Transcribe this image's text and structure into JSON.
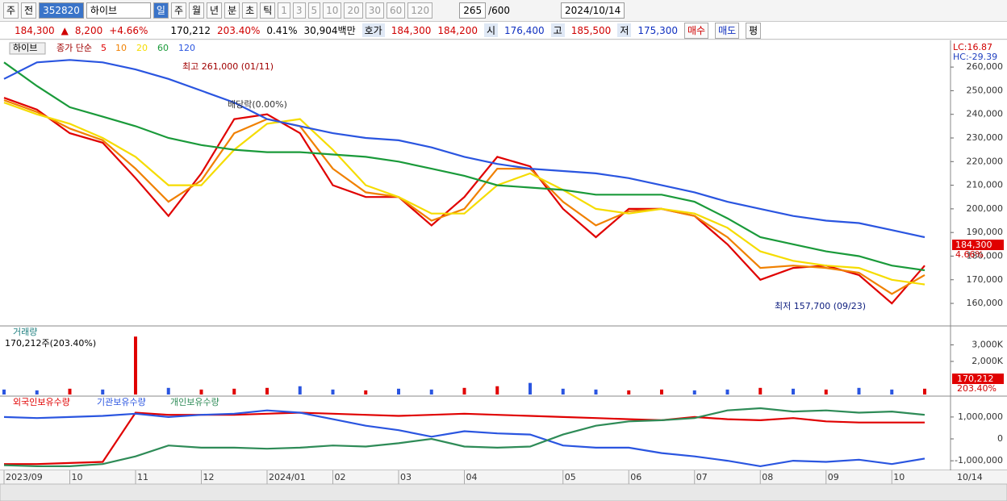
{
  "toolbar": [
    "주",
    "전",
    "352820",
    "하이브",
    "일",
    "주",
    "월",
    "년",
    "분",
    "초",
    "틱",
    "1",
    "3",
    "5",
    "10",
    "20",
    "30",
    "60",
    "120",
    "265",
    "/600",
    "2024/10/14"
  ],
  "quote": [
    "184,300",
    "▲",
    "8,200",
    "+4.66%",
    "170,212",
    "203.40%",
    "0.41%",
    "30,904백만",
    "호가",
    "184,300",
    "184,200",
    "시",
    "176,400",
    "고",
    "185,500",
    "저",
    "175,300",
    "매수",
    "매도",
    "평"
  ],
  "chart_data": [
    {
      "type": "line",
      "title": "하이브",
      "legend_prefix": "종가 단순",
      "ylim": [
        150800,
        269600
      ],
      "yticks": [
        {
          "value": 160000,
          "label": "160,000"
        },
        {
          "value": 170000,
          "label": "170,000"
        },
        {
          "value": 180000,
          "label": "180,000"
        },
        {
          "value": 190000,
          "label": "190,000"
        },
        {
          "value": 200000,
          "label": "200,000"
        },
        {
          "value": 210000,
          "label": "210,000"
        },
        {
          "value": 220000,
          "label": "220,000"
        },
        {
          "value": 230000,
          "label": "230,000"
        },
        {
          "value": 240000,
          "label": "240,000"
        },
        {
          "value": 250000,
          "label": "250,000"
        },
        {
          "value": 260000,
          "label": "260,000"
        }
      ],
      "series": [
        {
          "name": "5",
          "color": "#e00000",
          "values": [
            247000,
            242000,
            232000,
            228000,
            213000,
            197000,
            215000,
            238000,
            240000,
            232000,
            210000,
            205000,
            205000,
            193000,
            205000,
            222000,
            218000,
            200000,
            188000,
            200000,
            200000,
            197000,
            185000,
            170000,
            175000,
            176000,
            172000,
            160000,
            176000
          ]
        },
        {
          "name": "10",
          "color": "#f08000",
          "values": [
            246000,
            241000,
            234000,
            229000,
            217000,
            203000,
            212000,
            232000,
            238000,
            235000,
            217000,
            207000,
            205000,
            195000,
            200000,
            217000,
            217000,
            203000,
            193000,
            199000,
            200000,
            197000,
            188000,
            175000,
            176000,
            175000,
            173000,
            164000,
            172000
          ]
        },
        {
          "name": "20",
          "color": "#f5dc00",
          "values": [
            245000,
            240000,
            236000,
            230000,
            222000,
            210000,
            210000,
            225000,
            236000,
            238000,
            225000,
            210000,
            205000,
            198000,
            198000,
            210000,
            215000,
            208000,
            200000,
            198000,
            200000,
            198000,
            192000,
            182000,
            178000,
            176000,
            175000,
            170000,
            168000
          ]
        },
        {
          "name": "60",
          "color": "#1a9a3a",
          "values": [
            262000,
            252000,
            243000,
            239000,
            235000,
            230000,
            227000,
            225000,
            224000,
            224000,
            223000,
            222000,
            220000,
            217000,
            214000,
            210000,
            209000,
            208000,
            206000,
            206000,
            206000,
            203000,
            196000,
            188000,
            185000,
            182000,
            180000,
            176000,
            174000
          ]
        },
        {
          "name": "120",
          "color": "#2a55e0",
          "values": [
            255000,
            262000,
            263000,
            262000,
            259000,
            255000,
            250000,
            245000,
            238000,
            235000,
            232000,
            230000,
            229000,
            226000,
            222000,
            219000,
            217000,
            216000,
            215000,
            213000,
            210000,
            207000,
            203000,
            200000,
            197000,
            195000,
            194000,
            191000,
            188000
          ]
        }
      ],
      "annotations": [
        "최고 261,000 (01/11)",
        "최저 157,700 (09/23)",
        "배당락(0.00%)"
      ],
      "right_labels": [
        "LC:16.87",
        "HC:-29.39",
        "184,300",
        "4.66%"
      ]
    },
    {
      "type": "bar",
      "title": "거래량",
      "subtitle": "170,212주(203.40%)",
      "ylim": [
        0,
        3900000
      ],
      "yticks": [
        {
          "value": 2000000,
          "label": "2,000K"
        },
        {
          "value": 3000000,
          "label": "3,000K"
        }
      ],
      "values": [
        300000,
        250000,
        350000,
        300000,
        3500000,
        400000,
        300000,
        350000,
        400000,
        500000,
        300000,
        250000,
        350000,
        300000,
        400000,
        500000,
        700000,
        350000,
        300000,
        250000,
        300000,
        250000,
        300000,
        400000,
        350000,
        300000,
        400000,
        300000,
        350000
      ],
      "colors": [
        "#2a55e0",
        "#2a55e0",
        "#e00000",
        "#2a55e0",
        "#e00000",
        "#2a55e0",
        "#e00000",
        "#e00000",
        "#e00000",
        "#2a55e0",
        "#2a55e0",
        "#e00000",
        "#2a55e0",
        "#2a55e0",
        "#e00000",
        "#e00000",
        "#2a55e0",
        "#2a55e0",
        "#2a55e0",
        "#e00000",
        "#e00000",
        "#2a55e0",
        "#2a55e0",
        "#e00000",
        "#2a55e0",
        "#e00000",
        "#2a55e0",
        "#2a55e0",
        "#e00000"
      ],
      "right_labels": [
        "170,212",
        "203.40%"
      ]
    },
    {
      "type": "line",
      "ylim": [
        -1400000,
        1880000
      ],
      "yticks": [
        {
          "value": -1000000,
          "label": "-1,000,000"
        },
        0,
        {
          "value": 1000000,
          "label": "1,000,000"
        }
      ],
      "categories": [
        "2023/09",
        null,
        "10",
        null,
        "11",
        null,
        "12",
        null,
        "2024/01",
        null,
        "02",
        null,
        "03",
        null,
        "04",
        null,
        null,
        "05",
        null,
        "06",
        null,
        "07",
        null,
        "08",
        null,
        "09",
        null,
        "10",
        null
      ],
      "end_label": "10/14",
      "series": [
        {
          "name": "외국인보유수량",
          "color": "#e00000",
          "values": [
            -1150000,
            -1150000,
            -1100000,
            -1050000,
            1200000,
            1100000,
            1100000,
            1100000,
            1150000,
            1200000,
            1150000,
            1100000,
            1050000,
            1100000,
            1150000,
            1100000,
            1050000,
            1000000,
            950000,
            900000,
            850000,
            1000000,
            900000,
            850000,
            950000,
            800000,
            750000,
            750000,
            750000
          ]
        },
        {
          "name": "기관보유수량",
          "color": "#2a55e0",
          "values": [
            1000000,
            950000,
            1000000,
            1050000,
            1150000,
            1000000,
            1100000,
            1150000,
            1300000,
            1200000,
            900000,
            600000,
            400000,
            100000,
            350000,
            250000,
            200000,
            -300000,
            -400000,
            -400000,
            -650000,
            -800000,
            -1000000,
            -1250000,
            -1000000,
            -1050000,
            -950000,
            -1150000,
            -900000
          ]
        },
        {
          "name": "개인보유수량",
          "color": "#2e8b57",
          "values": [
            -1200000,
            -1250000,
            -1250000,
            -1150000,
            -800000,
            -300000,
            -400000,
            -400000,
            -450000,
            -400000,
            -300000,
            -350000,
            -200000,
            0,
            -350000,
            -400000,
            -350000,
            200000,
            600000,
            800000,
            850000,
            950000,
            1300000,
            1400000,
            1250000,
            1300000,
            1200000,
            1250000,
            1100000
          ]
        }
      ]
    }
  ]
}
